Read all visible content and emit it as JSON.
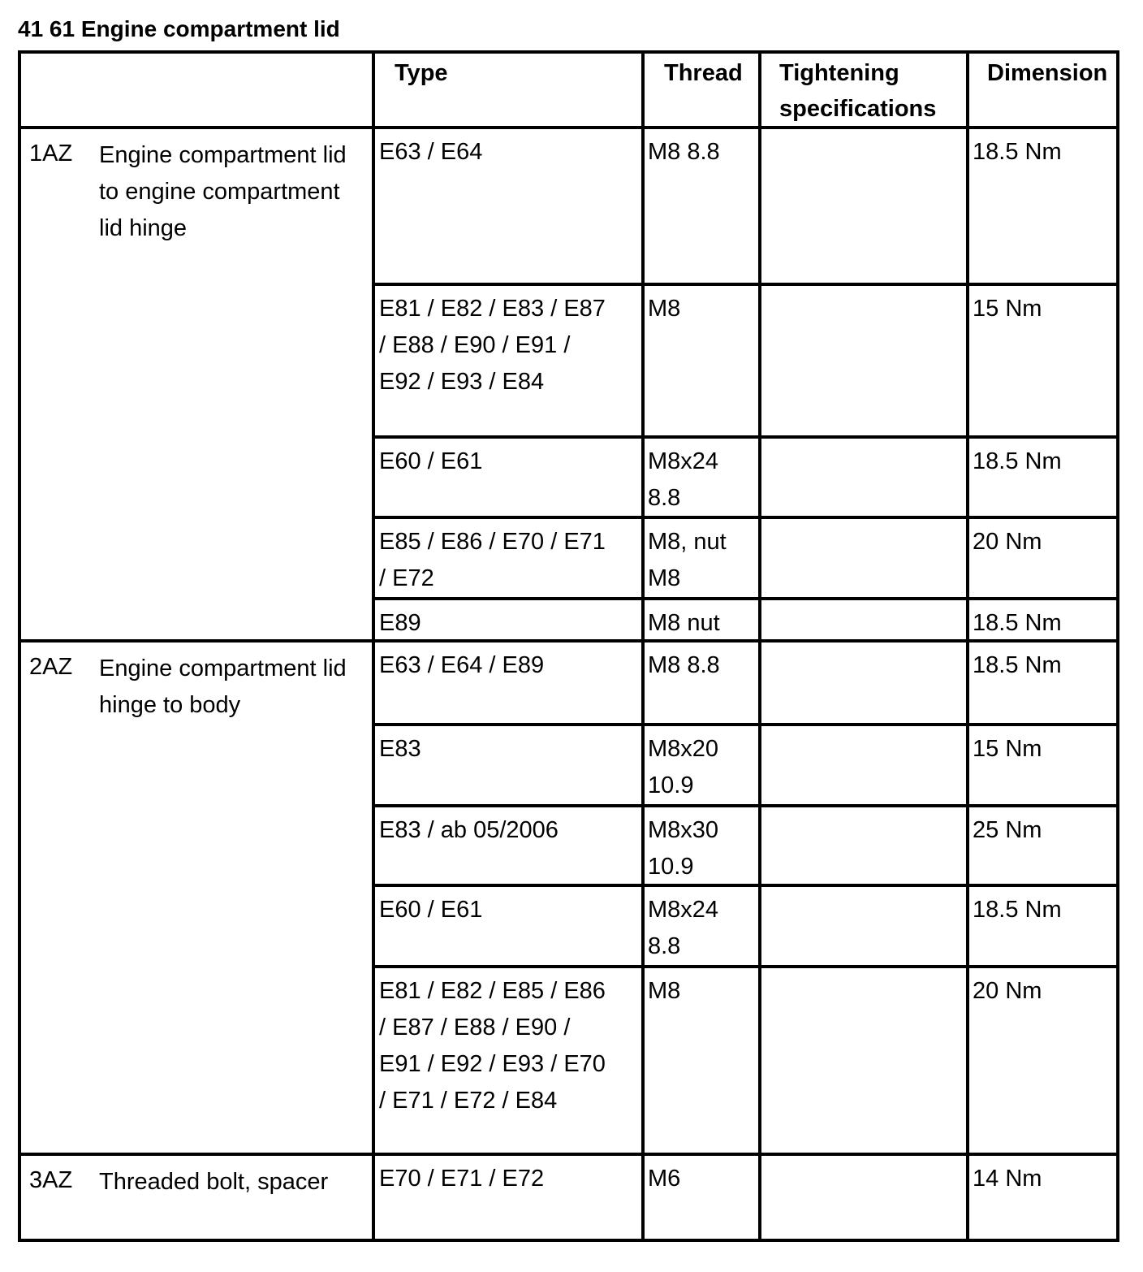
{
  "title": "41 61 Engine compartment lid",
  "table": {
    "headers": [
      "Type",
      "Thread",
      "Tightening specifications",
      "Dimension"
    ],
    "groups": [
      {
        "id": "1AZ",
        "description": "Engine compartment lid to engine compartment lid hinge",
        "rows": [
          {
            "type": "E63 / E64",
            "thread": "M8 8.8",
            "dimension": "18.5 Nm"
          },
          {
            "type": "E81 / E82 / E83 / E87 / E88 / E90 / E91 / E92 / E93 / E84",
            "thread": "M8",
            "dimension": "15 Nm"
          },
          {
            "type": "E60 / E61",
            "thread": "M8x24 8.8",
            "dimension": "18.5 Nm"
          },
          {
            "type": "E85 / E86 / E70 / E71 / E72",
            "thread": "M8, nut M8",
            "dimension": "20 Nm"
          },
          {
            "type": "E89",
            "thread": "M8 nut",
            "dimension": "18.5 Nm"
          }
        ]
      },
      {
        "id": "2AZ",
        "description": "Engine compartment lid hinge to body",
        "rows": [
          {
            "type": "E63 / E64 / E89",
            "thread": "M8 8.8",
            "dimension": "18.5 Nm"
          },
          {
            "type": "E83",
            "thread": "M8x20 10.9",
            "dimension": "15 Nm"
          },
          {
            "type": "E83 / ab 05/2006",
            "thread": "M8x30 10.9",
            "dimension": "25 Nm"
          },
          {
            "type": "E60 / E61",
            "thread": "M8x24 8.8",
            "dimension": "18.5 Nm"
          },
          {
            "type": "E81 / E82 / E85 / E86 / E87 / E88 / E90 / E91 / E92 / E93 / E70 / E71 / E72 / E84",
            "thread": "M8",
            "dimension": "20 Nm"
          }
        ]
      },
      {
        "id": "3AZ",
        "description": "Threaded bolt, spacer",
        "rows": [
          {
            "type": "E70 / E71 / E72",
            "thread": "M6",
            "dimension": "14 Nm"
          }
        ]
      }
    ]
  }
}
